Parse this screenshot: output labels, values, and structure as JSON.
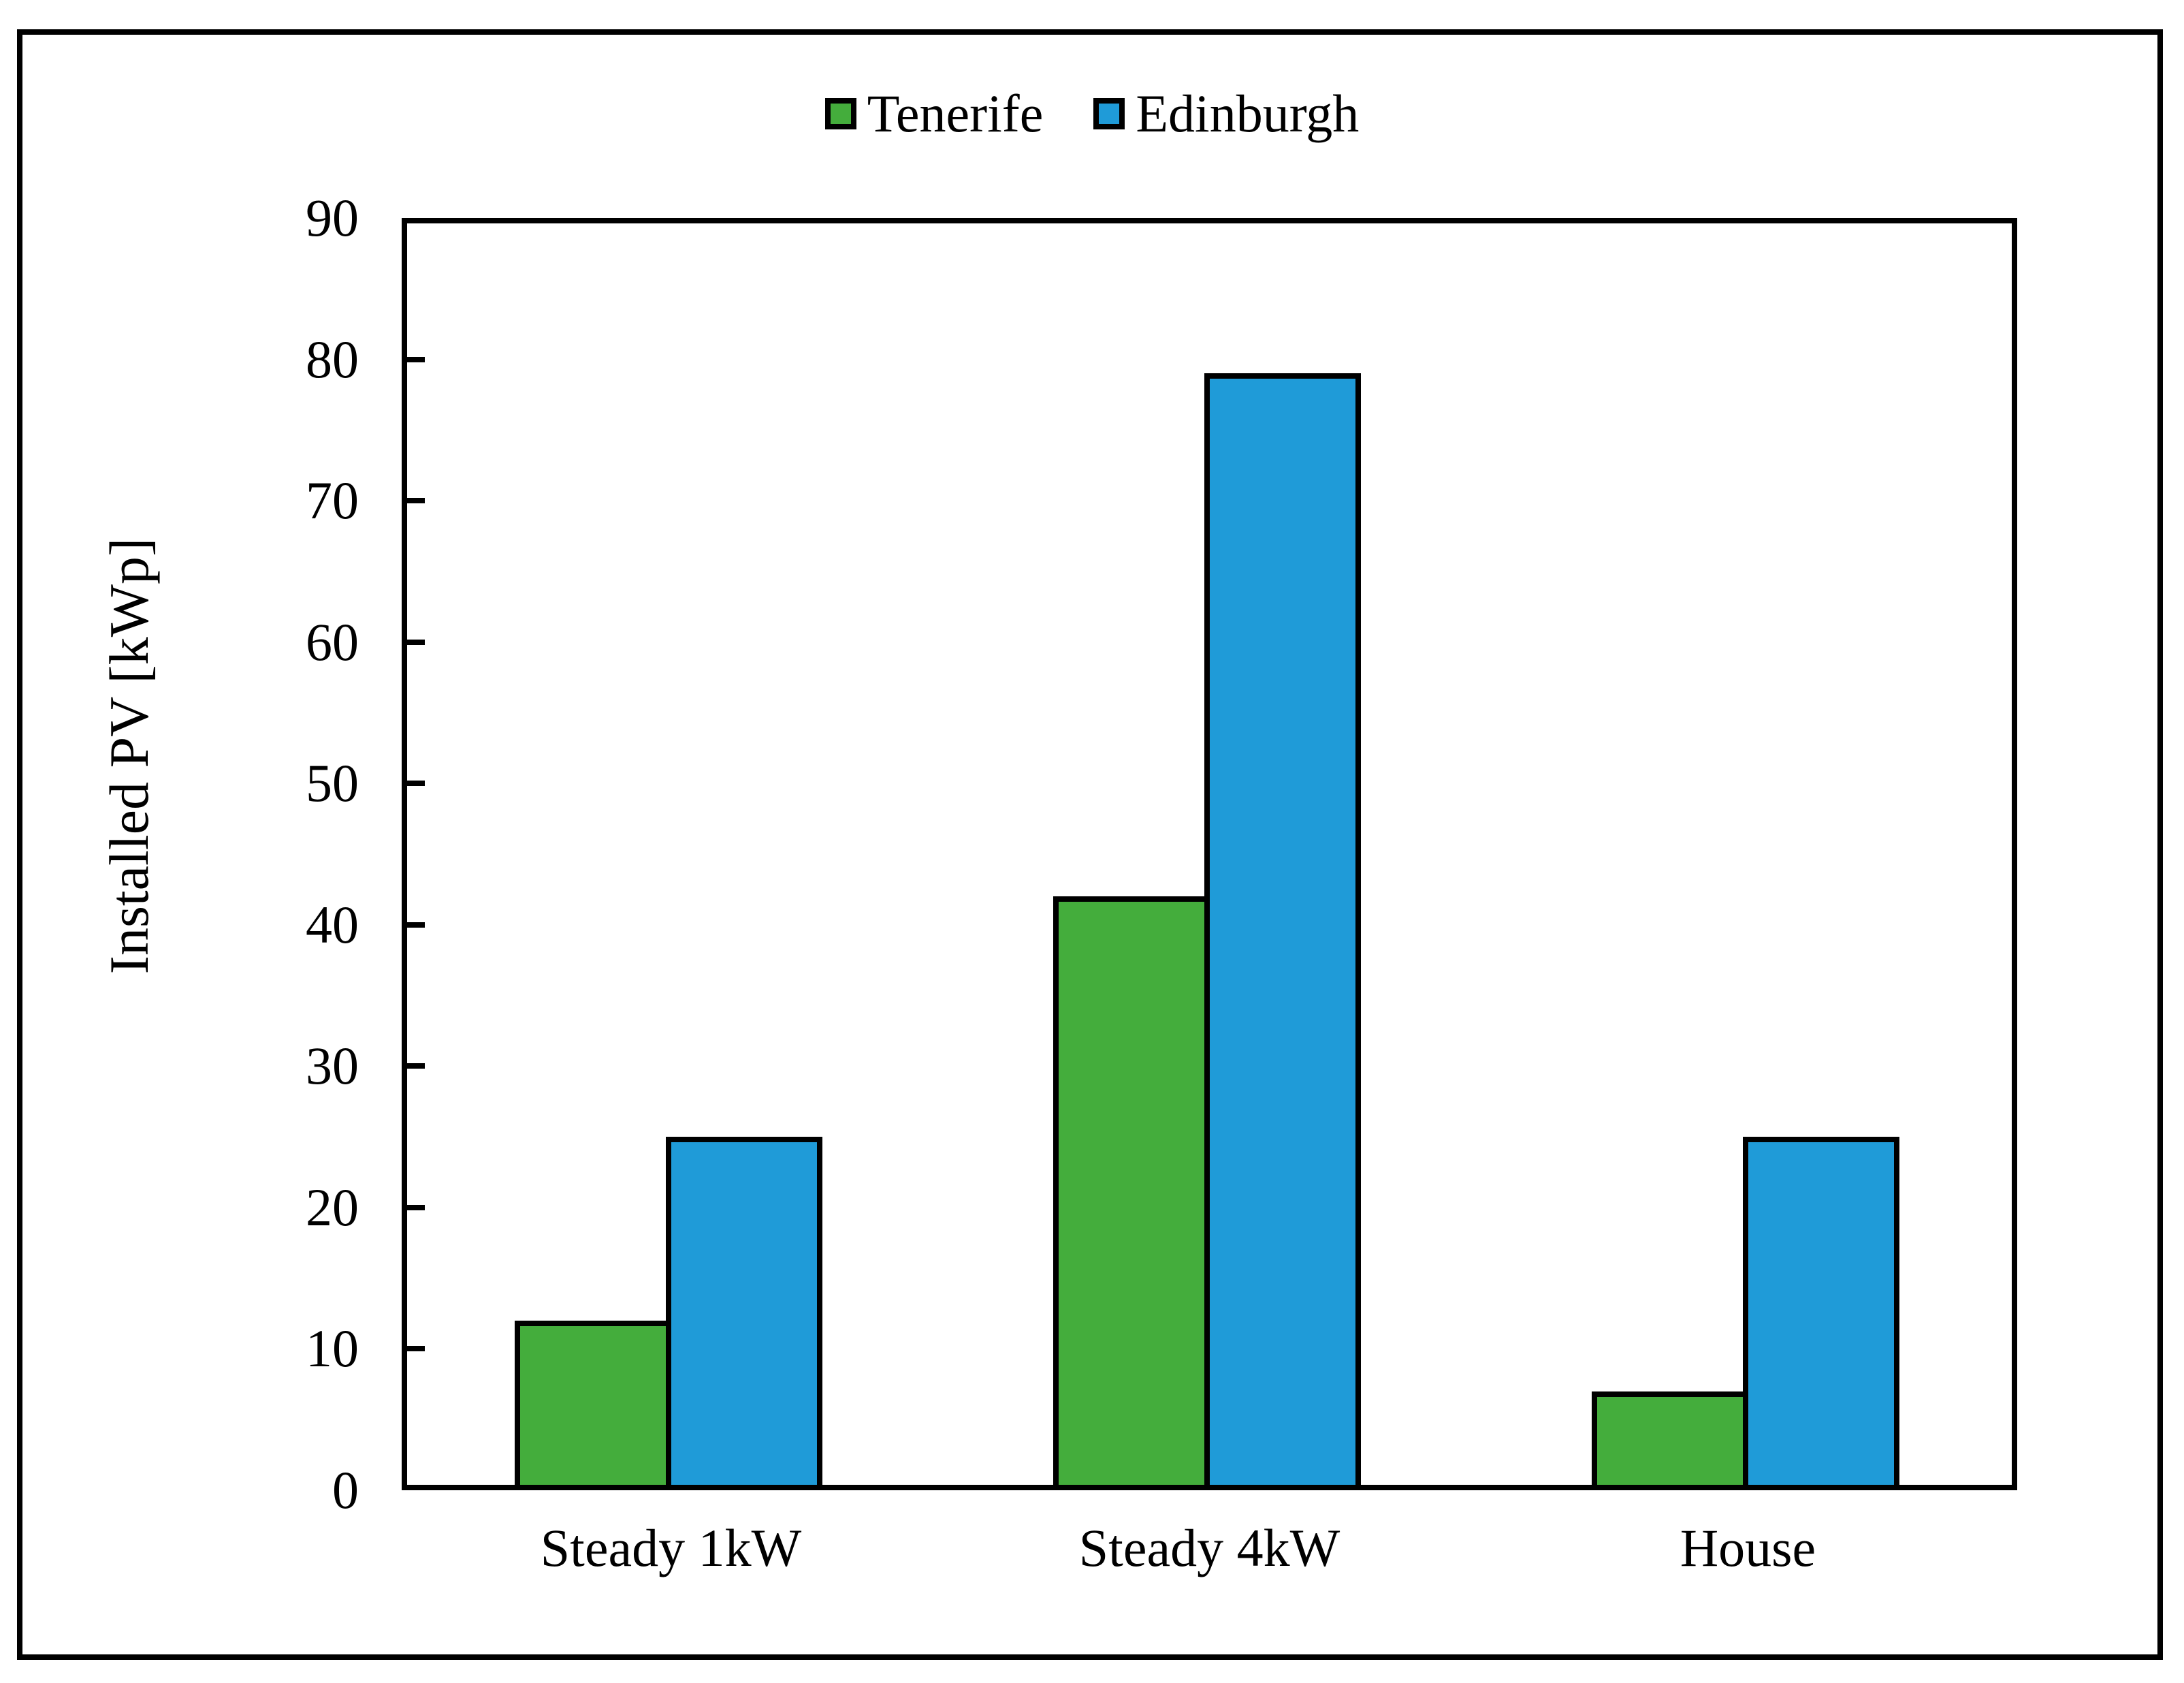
{
  "chart_data": {
    "type": "bar",
    "title": "",
    "categories": [
      "Steady 1kW",
      "Steady 4kW",
      "House"
    ],
    "series": [
      {
        "name": "Tenerife",
        "color": "#44AD3C",
        "values": [
          12,
          42,
          7
        ]
      },
      {
        "name": "Edinburgh",
        "color": "#1F9BD8",
        "values": [
          25,
          79,
          25
        ]
      }
    ],
    "xlabel": "",
    "ylabel": "Installed PV [kWp]",
    "ylim": [
      0,
      90
    ],
    "yticks": [
      0,
      10,
      20,
      30,
      40,
      50,
      60,
      70,
      80,
      90
    ],
    "grid": false,
    "legend_position": "top-center",
    "bar_outline_color": "#000000",
    "frame_color": "#000000"
  }
}
